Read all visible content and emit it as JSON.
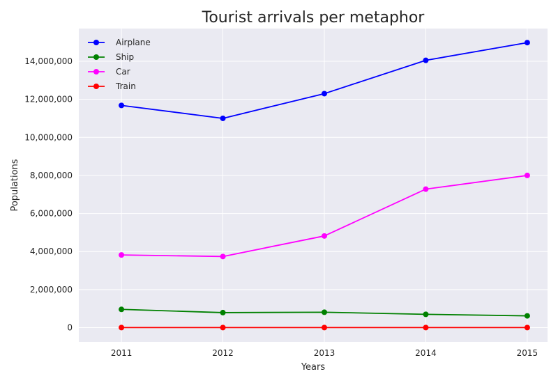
{
  "chart_data": {
    "type": "line",
    "title": "Tourist arrivals per metaphor",
    "xlabel": "Years",
    "ylabel": "Populations",
    "x": [
      2011,
      2012,
      2013,
      2014,
      2015
    ],
    "x_tick_labels": [
      "2011",
      "2012",
      "2013",
      "2014",
      "2015"
    ],
    "y_ticks": [
      0,
      2000000,
      4000000,
      6000000,
      8000000,
      10000000,
      12000000,
      14000000
    ],
    "y_tick_labels": [
      "0",
      "2,000,000",
      "4,000,000",
      "6,000,000",
      "8,000,000",
      "10,000,000",
      "12,000,000",
      "14,000,000"
    ],
    "xlim": [
      2010.58,
      2015.2
    ],
    "ylim": [
      -750000,
      15720000
    ],
    "grid": true,
    "legend_position": "top-left",
    "background": "#eaeaf2",
    "series": [
      {
        "name": "Airplane",
        "color": "#0000ff",
        "values": [
          11680000,
          11000000,
          12300000,
          14050000,
          14980000
        ]
      },
      {
        "name": "Ship",
        "color": "#008000",
        "values": [
          960000,
          790000,
          810000,
          700000,
          620000
        ]
      },
      {
        "name": "Car",
        "color": "#ff00ff",
        "values": [
          3820000,
          3740000,
          4820000,
          7280000,
          8000000
        ]
      },
      {
        "name": "Train",
        "color": "#ff0000",
        "values": [
          5000,
          5000,
          5000,
          5000,
          5000
        ]
      }
    ]
  }
}
